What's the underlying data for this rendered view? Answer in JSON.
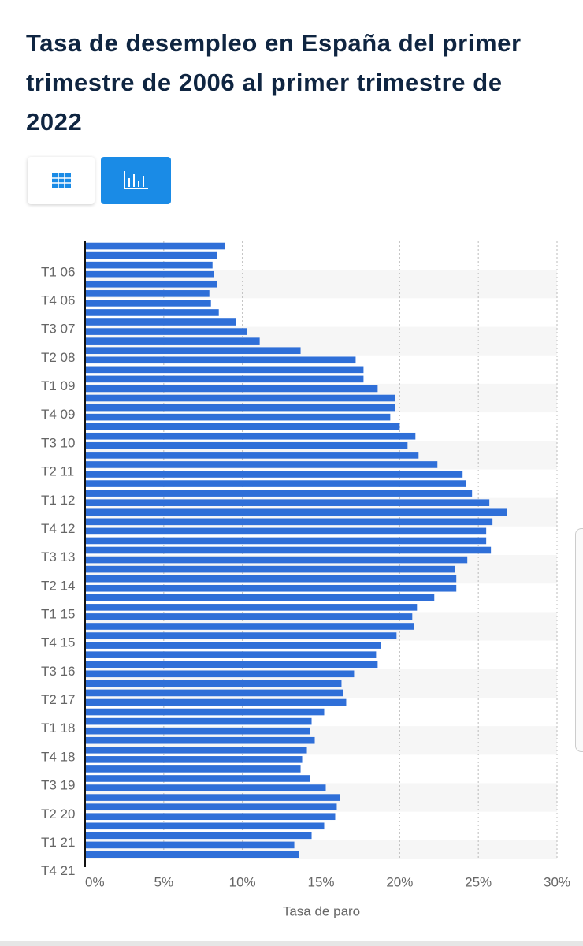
{
  "chart_data": {
    "type": "bar",
    "orientation": "horizontal",
    "title": "Tasa de desempleo en España del primer trimestre de 2006 al primer trimestre de 2022",
    "xlabel": "Tasa de paro",
    "categories": [
      "T1 06",
      null,
      null,
      "T4 06",
      null,
      null,
      "T3 07",
      null,
      null,
      "T2 08",
      null,
      null,
      "T1 09",
      null,
      null,
      "T4 09",
      null,
      null,
      "T3 10",
      null,
      null,
      "T2 11",
      null,
      null,
      "T1 12",
      null,
      null,
      "T4 12",
      null,
      null,
      "T3 13",
      null,
      null,
      "T2 14",
      null,
      null,
      "T1 15",
      null,
      null,
      "T4 15",
      null,
      null,
      "T3 16",
      null,
      null,
      "T2 17",
      null,
      null,
      "T1 18",
      null,
      null,
      "T4 18",
      null,
      null,
      "T3 19",
      null,
      null,
      "T2 20",
      null,
      null,
      "T1 21",
      null,
      null,
      "T4 21",
      null
    ],
    "values": [
      8.9,
      8.4,
      8.1,
      8.2,
      8.4,
      7.9,
      8.0,
      8.5,
      9.6,
      10.3,
      11.1,
      13.7,
      17.2,
      17.7,
      17.7,
      18.6,
      19.7,
      19.7,
      19.4,
      20.0,
      21.0,
      20.5,
      21.2,
      22.4,
      24.0,
      24.2,
      24.6,
      25.7,
      26.8,
      25.9,
      25.5,
      25.5,
      25.8,
      24.3,
      23.5,
      23.6,
      23.6,
      22.2,
      21.1,
      20.8,
      20.9,
      19.8,
      18.8,
      18.5,
      18.6,
      17.1,
      16.3,
      16.4,
      16.6,
      15.2,
      14.4,
      14.3,
      14.6,
      14.1,
      13.8,
      13.7,
      14.3,
      15.3,
      16.2,
      16.0,
      15.9,
      15.2,
      14.4,
      13.3,
      13.6
    ],
    "color": "#2f6fd8",
    "xlim": [
      0,
      30
    ],
    "xticks": [
      {
        "value": 0,
        "label": "0%"
      },
      {
        "value": 5,
        "label": "5%"
      },
      {
        "value": 10,
        "label": "10%"
      },
      {
        "value": 15,
        "label": "15%"
      },
      {
        "value": 20,
        "label": "20%"
      },
      {
        "value": 25,
        "label": "25%"
      },
      {
        "value": 30,
        "label": "30%"
      }
    ],
    "grid": true
  }
}
